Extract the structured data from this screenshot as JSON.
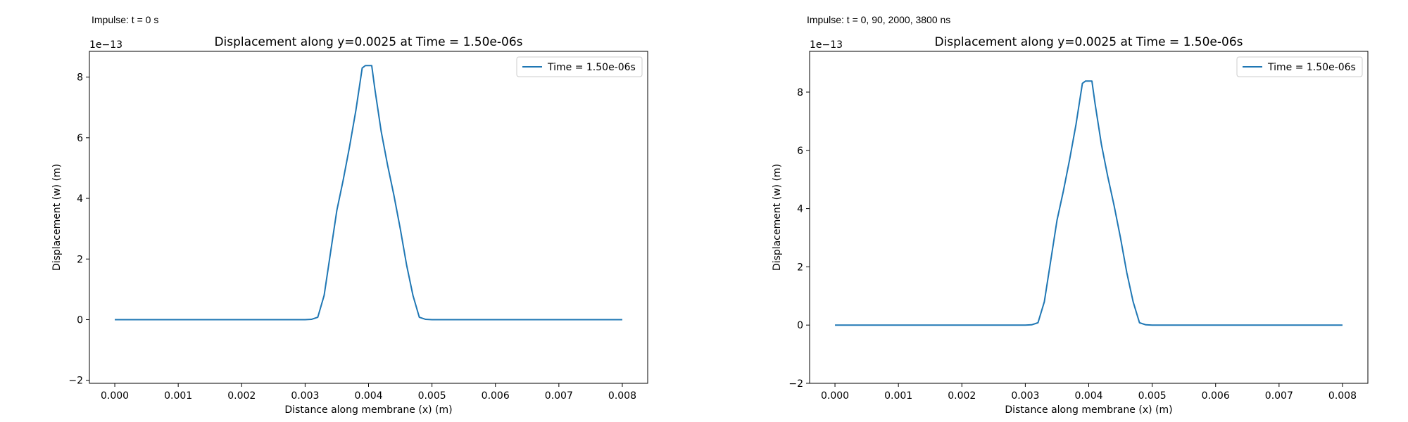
{
  "captions": [
    "Impulse: t = 0 s",
    "Impulse: t = 0, 90, 2000, 3800 ns"
  ],
  "colors": {
    "series": "#1f77b4",
    "axis": "#000000",
    "legend_border": "#cccccc"
  },
  "chart_data": [
    {
      "type": "line",
      "title": "Displacement along y=0.0025 at Time = 1.50e-06s",
      "xlabel": "Distance along membrane (x) (m)",
      "ylabel": "Displacement (w) (m)",
      "y_offset_text": "1e−13",
      "y_multiplier": 1e-13,
      "xlim": [
        -0.0004,
        0.0084
      ],
      "ylim": [
        -2.1,
        8.85
      ],
      "x_ticks": [
        0.0,
        0.001,
        0.002,
        0.003,
        0.004,
        0.005,
        0.006,
        0.007,
        0.008
      ],
      "x_tick_labels": [
        "0.000",
        "0.001",
        "0.002",
        "0.003",
        "0.004",
        "0.005",
        "0.006",
        "0.007",
        "0.008"
      ],
      "y_ticks": [
        -2,
        0,
        2,
        4,
        6,
        8
      ],
      "y_tick_labels": [
        "−2",
        "0",
        "2",
        "4",
        "6",
        "8"
      ],
      "legend_position": "top-right",
      "grid": false,
      "series": [
        {
          "name": "Time = 1.50e-06s",
          "x": [
            0.0,
            0.001,
            0.002,
            0.003,
            0.0031,
            0.0032,
            0.0033,
            0.0034,
            0.0035,
            0.0036,
            0.0037,
            0.0038,
            0.0039,
            0.00395,
            0.00405,
            0.0041,
            0.0042,
            0.0043,
            0.0044,
            0.0045,
            0.0046,
            0.0047,
            0.0048,
            0.0049,
            0.005,
            0.006,
            0.007,
            0.008
          ],
          "y": [
            0,
            0,
            0,
            0,
            0.01,
            0.08,
            0.8,
            2.2,
            3.6,
            4.6,
            5.7,
            6.9,
            8.3,
            8.38,
            8.38,
            7.6,
            6.2,
            5.1,
            4.1,
            3.0,
            1.8,
            0.8,
            0.08,
            0.01,
            0,
            0,
            0,
            0
          ]
        }
      ]
    },
    {
      "type": "line",
      "title": "Displacement along y=0.0025 at Time = 1.50e-06s",
      "xlabel": "Distance along membrane (x) (m)",
      "ylabel": "Displacement (w) (m)",
      "y_offset_text": "1e−13",
      "y_multiplier": 1e-13,
      "xlim": [
        -0.0004,
        0.0084
      ],
      "ylim": [
        -2.0,
        9.4
      ],
      "x_ticks": [
        0.0,
        0.001,
        0.002,
        0.003,
        0.004,
        0.005,
        0.006,
        0.007,
        0.008
      ],
      "x_tick_labels": [
        "0.000",
        "0.001",
        "0.002",
        "0.003",
        "0.004",
        "0.005",
        "0.006",
        "0.007",
        "0.008"
      ],
      "y_ticks": [
        -2,
        0,
        2,
        4,
        6,
        8
      ],
      "y_tick_labels": [
        "−2",
        "0",
        "2",
        "4",
        "6",
        "8"
      ],
      "legend_position": "top-right",
      "grid": false,
      "series": [
        {
          "name": "Time = 1.50e-06s",
          "x": [
            0.0,
            0.001,
            0.002,
            0.003,
            0.0031,
            0.0032,
            0.0033,
            0.0034,
            0.0035,
            0.0036,
            0.0037,
            0.0038,
            0.0039,
            0.00395,
            0.00405,
            0.0041,
            0.0042,
            0.0043,
            0.0044,
            0.0045,
            0.0046,
            0.0047,
            0.0048,
            0.0049,
            0.005,
            0.006,
            0.007,
            0.008
          ],
          "y": [
            0,
            0,
            0,
            0,
            0.01,
            0.08,
            0.8,
            2.2,
            3.6,
            4.6,
            5.7,
            6.9,
            8.3,
            8.38,
            8.38,
            7.6,
            6.2,
            5.1,
            4.1,
            3.0,
            1.8,
            0.8,
            0.08,
            0.01,
            0,
            0,
            0,
            0
          ]
        }
      ]
    }
  ]
}
